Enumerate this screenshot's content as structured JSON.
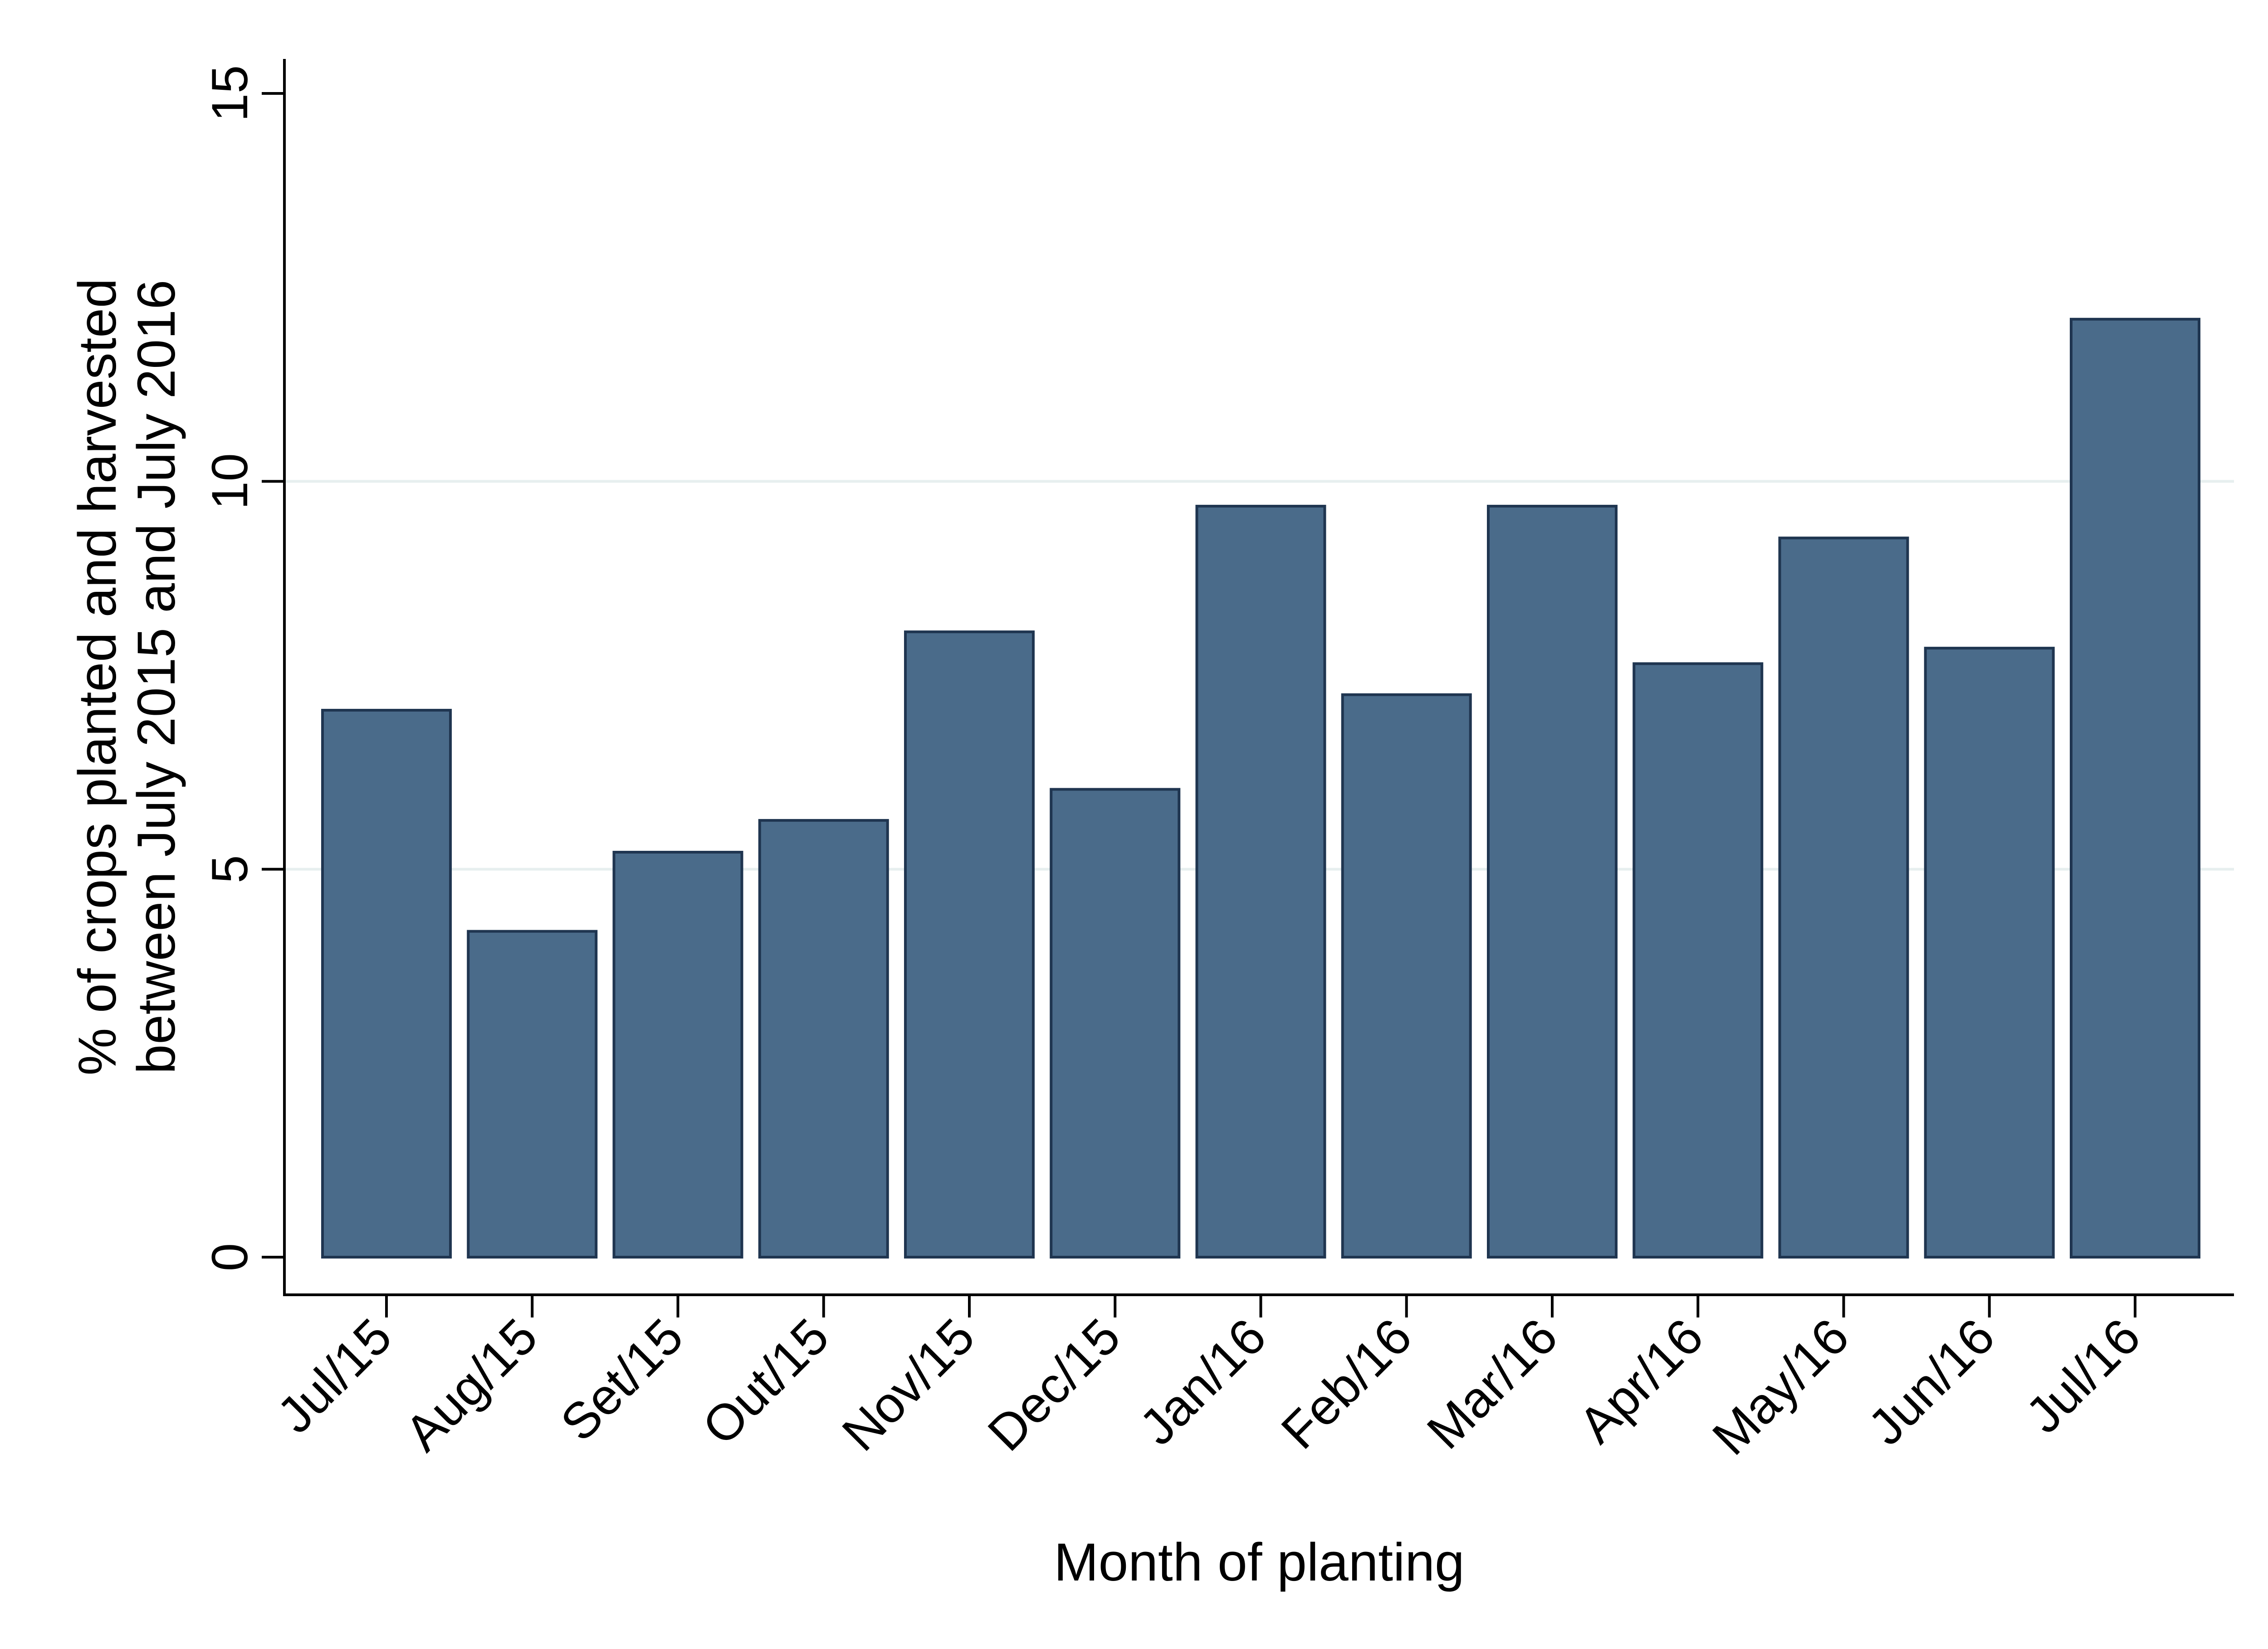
{
  "chart_data": {
    "type": "bar",
    "categories": [
      "Jul/15",
      "Aug/15",
      "Set/15",
      "Out/15",
      "Nov/15",
      "Dec/15",
      "Jan/16",
      "Feb/16",
      "Mar/16",
      "Apr/16",
      "May/16",
      "Jun/16",
      "Jul/16"
    ],
    "values": [
      7.05,
      4.2,
      5.22,
      5.63,
      8.06,
      6.03,
      9.68,
      7.25,
      9.68,
      7.65,
      9.27,
      7.85,
      12.09
    ],
    "title": "",
    "xlabel": "Month of planting",
    "ylabel_lines": [
      "% of crops planted and harvested",
      "between July 2015 and July 2016"
    ],
    "ylim": [
      0,
      15
    ],
    "yticks": [
      0,
      5,
      10,
      15
    ],
    "grid": true,
    "bar_color": "#4a6b8a",
    "bar_edge_color": "#1f3550",
    "grid_color": "#e7efef"
  }
}
